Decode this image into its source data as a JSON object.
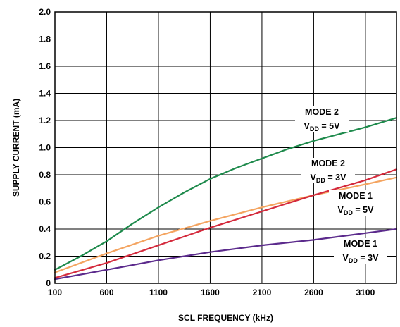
{
  "chart_data": {
    "type": "line",
    "title": "",
    "xlabel": "SCL FREQUENCY (kHz)",
    "ylabel": "SUPPLY CURRENT (mA)",
    "xlim": [
      100,
      3400
    ],
    "ylim": [
      0,
      2.0
    ],
    "xticks": [
      100,
      600,
      1100,
      1600,
      2100,
      2600,
      3100
    ],
    "xtick_labels": [
      "100",
      "600",
      "1100",
      "1600",
      "2100",
      "2600",
      "3100"
    ],
    "yticks": [
      0,
      0.2,
      0.4,
      0.6,
      0.8,
      1.0,
      1.2,
      1.4,
      1.6,
      1.8,
      2.0
    ],
    "ytick_labels": [
      "0",
      "0.2",
      "0.4",
      "0.6",
      "0.8",
      "1.0",
      "1.2",
      "1.4",
      "1.6",
      "1.8",
      "2.0"
    ],
    "grid": true,
    "series": [
      {
        "color": "#1e8a4c",
        "x": [
          100,
          350,
          600,
          850,
          1100,
          1350,
          1600,
          1850,
          2100,
          2350,
          2600,
          2850,
          3100,
          3400
        ],
        "y": [
          0.1,
          0.2,
          0.31,
          0.44,
          0.56,
          0.67,
          0.77,
          0.85,
          0.92,
          0.99,
          1.05,
          1.1,
          1.15,
          1.22
        ]
      },
      {
        "color": "#f4a460",
        "x": [
          100,
          600,
          1100,
          1600,
          2100,
          2600,
          3100,
          3400
        ],
        "y": [
          0.08,
          0.22,
          0.35,
          0.46,
          0.56,
          0.65,
          0.73,
          0.78
        ]
      },
      {
        "color": "#d42a3c",
        "x": [
          100,
          600,
          1100,
          1600,
          2100,
          2600,
          3100,
          3400
        ],
        "y": [
          0.04,
          0.15,
          0.28,
          0.41,
          0.53,
          0.65,
          0.76,
          0.84
        ]
      },
      {
        "color": "#5b2a8c",
        "x": [
          100,
          600,
          1100,
          1600,
          2100,
          2600,
          3100,
          3400
        ],
        "y": [
          0.03,
          0.1,
          0.17,
          0.23,
          0.28,
          0.32,
          0.37,
          0.4
        ]
      }
    ],
    "annotations": [
      {
        "line1": "MODE 2",
        "vdd_main": "V",
        "vdd_sub": "DD",
        "vdd_value": " = 5V"
      },
      {
        "line1": "MODE 2",
        "vdd_main": "V",
        "vdd_sub": "DD",
        "vdd_value": " = 3V"
      },
      {
        "line1": "MODE 1",
        "vdd_main": "V",
        "vdd_sub": "DD",
        "vdd_value": " = 5V"
      },
      {
        "line1": "MODE 1",
        "vdd_main": "V",
        "vdd_sub": "DD",
        "vdd_value": " = 3V"
      }
    ]
  }
}
